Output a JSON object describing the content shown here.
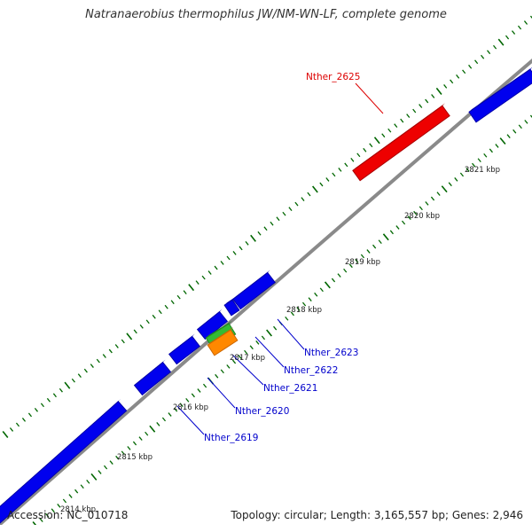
{
  "title": "Natranaerobius thermophilus JW/NM-WN-LF, complete genome",
  "accession": "Accession: NC_010718",
  "topology_info": "Topology: circular; Length: 3,165,557 bp; Genes: 2,946",
  "colors": {
    "backbone": "#888888",
    "gene_default": "#0000ee",
    "gene_highlight": "#ee0000",
    "gene_green": "#33bb33",
    "gene_orange": "#ff8800",
    "tick": "#006600",
    "label_default": "#0000cc",
    "label_highlight": "#dd0000"
  },
  "ticks": [
    {
      "label": "2814 kbp"
    },
    {
      "label": "2815 kbp"
    },
    {
      "label": "2816 kbp"
    },
    {
      "label": "2817 kbp"
    },
    {
      "label": "2818 kbp"
    },
    {
      "label": "2819 kbp"
    },
    {
      "label": "2820 kbp"
    },
    {
      "label": "2821 kbp"
    }
  ],
  "gene_labels": [
    {
      "label": "Nther_2625",
      "color": "red"
    },
    {
      "label": "Nther_2623",
      "color": "blue"
    },
    {
      "label": "Nther_2622",
      "color": "blue"
    },
    {
      "label": "Nther_2621",
      "color": "blue"
    },
    {
      "label": "Nther_2620",
      "color": "blue"
    },
    {
      "label": "Nther_2619",
      "color": "blue"
    }
  ]
}
